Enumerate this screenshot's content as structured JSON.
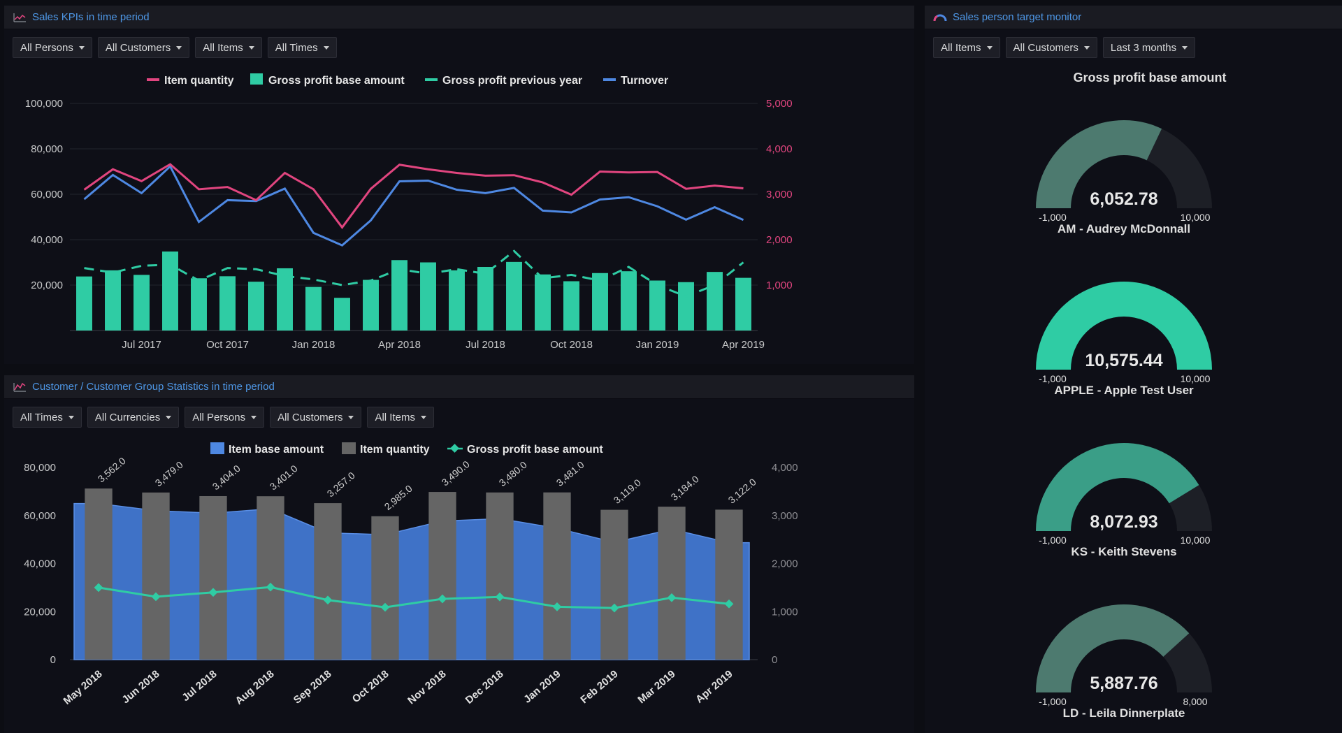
{
  "panel_kpi": {
    "title": "Sales KPIs in time period",
    "filters": [
      "All Persons",
      "All Customers",
      "All Items",
      "All Times"
    ],
    "legend": [
      "Item quantity",
      "Gross profit base amount",
      "Gross profit previous year",
      "Turnover"
    ]
  },
  "panel_customer": {
    "title": "Customer / Customer Group Statistics in time period",
    "filters": [
      "All Times",
      "All Currencies",
      "All Persons",
      "All Customers",
      "All Items"
    ],
    "legend": [
      "Item base amount",
      "Item quantity",
      "Gross profit base amount"
    ]
  },
  "panel_target": {
    "title": "Sales person target monitor",
    "filters": [
      "All Items",
      "All Customers",
      "Last 3 months"
    ],
    "heading": "Gross profit base amount",
    "gauges": [
      {
        "value": 6052.78,
        "value_label": "6,052.78",
        "min": -1000,
        "max": 10000,
        "min_label": "-1,000",
        "max_label": "10,000",
        "name": "AM - Audrey McDonnall"
      },
      {
        "value": 10575.44,
        "value_label": "10,575.44",
        "min": -1000,
        "max": 10000,
        "min_label": "-1,000",
        "max_label": "10,000",
        "name": "APPLE - Apple Test User"
      },
      {
        "value": 8072.93,
        "value_label": "8,072.93",
        "min": -1000,
        "max": 10000,
        "min_label": "-1,000",
        "max_label": "10,000",
        "name": "KS - Keith Stevens"
      },
      {
        "value": 5887.76,
        "value_label": "5,887.76",
        "min": -1000,
        "max": 8000,
        "min_label": "-1,000",
        "max_label": "8,000",
        "name": "LD - Leila Dinnerplate"
      }
    ]
  },
  "colors": {
    "pink": "#e1457f",
    "green": "#2fcca4",
    "blue": "#4e88e2",
    "gray_bar": "#656565",
    "area_blue": "#3f72c7",
    "gauge_full": "#2fcca4",
    "gauge_partial": "#4d7a6f",
    "gauge_track": "#1d1f26"
  },
  "chart_data": [
    {
      "type": "bar+line",
      "title": "Sales KPIs in time period",
      "x_ticks": [
        "Jul 2017",
        "Oct 2017",
        "Jan 2018",
        "Apr 2018",
        "Jul 2018",
        "Oct 2018",
        "Jan 2019",
        "Apr 2019"
      ],
      "x_tick_positions": [
        2,
        5,
        8,
        11,
        14,
        17,
        20,
        23
      ],
      "y_left_ticks": [
        "100,000",
        "80,000",
        "60,000",
        "40,000",
        "20,000"
      ],
      "y_right_ticks": [
        "5,000",
        "4,000",
        "3,000",
        "2,000",
        "1,000"
      ],
      "ylim_left": [
        0,
        100000
      ],
      "ylim_right": [
        0,
        5000
      ],
      "months": 24,
      "series": [
        {
          "name": "Gross profit base amount",
          "type": "bar",
          "axis": "left",
          "values": [
            23800,
            26500,
            24500,
            34800,
            23000,
            23900,
            21500,
            27400,
            19200,
            14400,
            22300,
            31000,
            30000,
            26500,
            28000,
            30200,
            24700,
            21700,
            25300,
            26100,
            22000,
            21300,
            25800,
            23200
          ]
        },
        {
          "name": "Gross profit previous year",
          "type": "dashed-line",
          "axis": "left",
          "values": [
            27500,
            25500,
            28500,
            29000,
            22000,
            27500,
            27000,
            24000,
            22500,
            20000,
            22000,
            27000,
            25000,
            27000,
            25000,
            35000,
            23000,
            24500,
            22000,
            28000,
            20000,
            15000,
            20000,
            30000
          ]
        },
        {
          "name": "Turnover",
          "type": "line",
          "axis": "left",
          "values": [
            57800,
            68500,
            60500,
            72300,
            47800,
            57400,
            57000,
            62500,
            43000,
            37500,
            48500,
            65700,
            66000,
            62000,
            60500,
            62800,
            52800,
            52000,
            57700,
            58700,
            54700,
            48800,
            54300,
            48700
          ]
        },
        {
          "name": "Item quantity",
          "type": "line",
          "axis": "right",
          "values": [
            3100,
            3550,
            3290,
            3660,
            3110,
            3160,
            2870,
            3470,
            3110,
            2270,
            3120,
            3650,
            3550,
            3470,
            3410,
            3420,
            3260,
            2990,
            3500,
            3480,
            3490,
            3120,
            3190,
            3130
          ]
        }
      ]
    },
    {
      "type": "bar+area+line",
      "title": "Customer / Customer Group Statistics in time period",
      "categories": [
        "May 2018",
        "Jun 2018",
        "Jul 2018",
        "Aug 2018",
        "Sep 2018",
        "Oct 2018",
        "Nov 2018",
        "Dec 2018",
        "Jan 2019",
        "Feb 2019",
        "Mar 2019",
        "Apr 2019"
      ],
      "y_left_ticks": [
        "80,000",
        "60,000",
        "40,000",
        "20,000",
        "0"
      ],
      "y_right_ticks": [
        "4,000",
        "3,000",
        "2,000",
        "1,000",
        "0"
      ],
      "ylim_left": [
        0,
        80000
      ],
      "ylim_right": [
        0,
        4000
      ],
      "series": [
        {
          "name": "Item base amount",
          "type": "area",
          "axis": "left",
          "values": [
            65000,
            62000,
            61000,
            62800,
            52800,
            52000,
            57700,
            58700,
            54700,
            48800,
            54300,
            48700
          ]
        },
        {
          "name": "Item quantity",
          "type": "bar",
          "axis": "right",
          "values": [
            3562.0,
            3479.0,
            3404.0,
            3401.0,
            3257.0,
            2985.0,
            3490.0,
            3480.0,
            3481.0,
            3119.0,
            3184.0,
            3122.0
          ],
          "labels": [
            "3,562.0",
            "3,479.0",
            "3,404.0",
            "3,401.0",
            "3,257.0",
            "2,985.0",
            "3,490.0",
            "3,480.0",
            "3,481.0",
            "3,119.0",
            "3,184.0",
            "3,122.0"
          ]
        },
        {
          "name": "Gross profit base amount",
          "type": "line",
          "axis": "left",
          "values": [
            30000,
            26200,
            28000,
            30200,
            24800,
            21800,
            25300,
            26100,
            22000,
            21500,
            25800,
            23200
          ]
        }
      ]
    }
  ]
}
